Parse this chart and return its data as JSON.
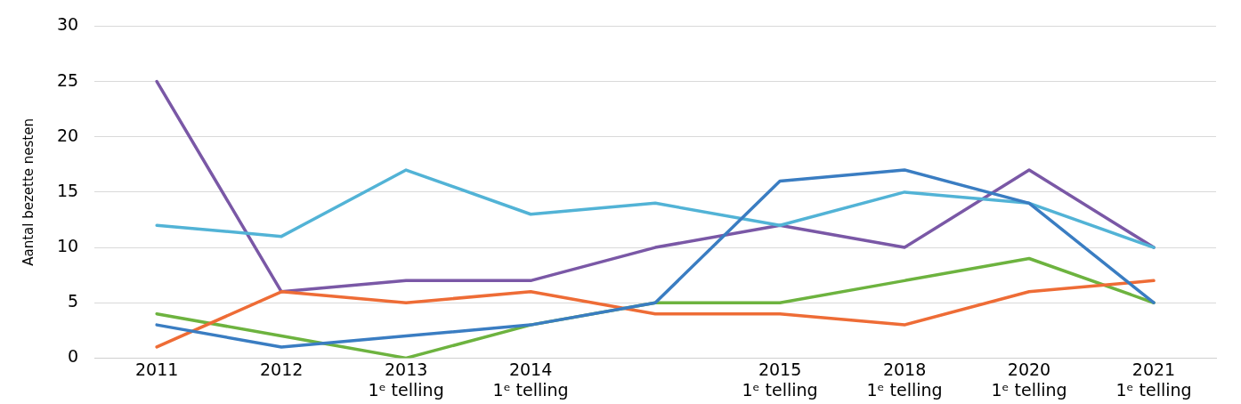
{
  "chart_data": {
    "type": "line",
    "ylabel": "Aantal bezette nesten",
    "categories": [
      "2011",
      "2012",
      "2013\n1ᵉ telling",
      "2014\n1ᵉ telling",
      null,
      "2015\n1ᵉ telling",
      "2018\n1ᵉ telling",
      "2020\n1ᵉ telling",
      "2021\n1ᵉ telling"
    ],
    "ylim": [
      0,
      30
    ],
    "yticks": [
      0,
      5,
      10,
      15,
      20,
      25,
      30
    ],
    "grid": "y",
    "legend": false,
    "marker": "none",
    "line_style": "solid",
    "series": [
      {
        "color": "#3a7dc2",
        "values": [
          3,
          1,
          2,
          3,
          5,
          16,
          17,
          14,
          5
        ]
      },
      {
        "color": "#ee6c36",
        "values": [
          1,
          6,
          5,
          6,
          4,
          4,
          3,
          6,
          7
        ]
      },
      {
        "color": "#6db33f",
        "values": [
          4,
          2,
          0,
          3,
          5,
          5,
          7,
          9,
          5
        ]
      },
      {
        "color": "#52b3d6",
        "values": [
          12,
          11,
          17,
          13,
          14,
          12,
          15,
          14,
          10
        ]
      },
      {
        "color": "#7a58a6",
        "values": [
          25,
          6,
          7,
          7,
          10,
          12,
          10,
          17,
          10
        ]
      }
    ]
  }
}
